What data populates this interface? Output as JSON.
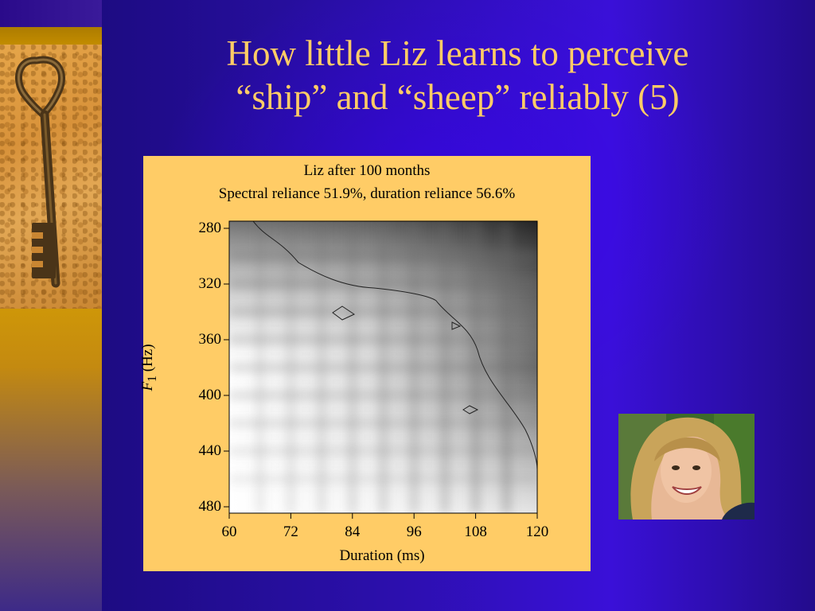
{
  "slide": {
    "title_line1": "How little Liz learns to perceive",
    "title_line2": "“ship” and “sheep” reliably (5)",
    "colors": {
      "background": "#2a0fa8",
      "title": "#ffcc66",
      "chart_panel": "#ffcc66",
      "left_strip": "#d9a400"
    },
    "images": [
      "key-photo",
      "portrait-photo"
    ]
  },
  "chart_data": {
    "type": "heatmap",
    "title": "Liz after 100 months",
    "subtitle": "Spectral reliance 51.9%, duration reliance 56.6%",
    "xlabel": "Duration (ms)",
    "ylabel_italic": "F",
    "ylabel_sub": "1",
    "ylabel_rest": " (Hz)",
    "xticks": [
      "60",
      "72",
      "84",
      "96",
      "108",
      "120"
    ],
    "yticks": [
      "280",
      "320",
      "360",
      "400",
      "440",
      "480"
    ],
    "x": [
      60,
      120
    ],
    "y": [
      280,
      480
    ],
    "xlim": [
      60,
      120
    ],
    "ylim": [
      280,
      480
    ],
    "y_inverted": true,
    "colormap": "grayscale (white = low, black = high)",
    "grid": false,
    "contours": true
  }
}
